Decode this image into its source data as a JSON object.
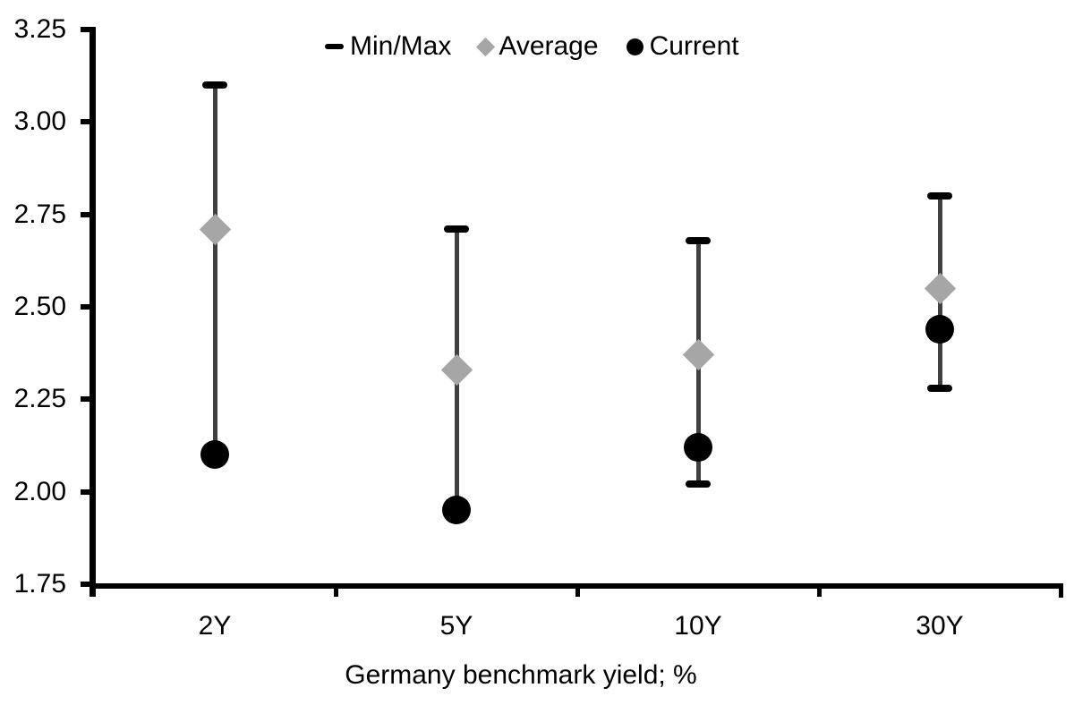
{
  "chart_data": {
    "type": "scatter",
    "subtype": "min-max-range-with-markers",
    "title": "",
    "xlabel": "Germany benchmark yield; %",
    "ylabel": "",
    "categories": [
      "2Y",
      "5Y",
      "10Y",
      "30Y"
    ],
    "y_ticks": [
      "3.25",
      "3.00",
      "2.75",
      "2.50",
      "2.25",
      "2.00",
      "1.75"
    ],
    "ylim": [
      1.75,
      3.25
    ],
    "grid": false,
    "legend_position": "top-center",
    "axis_color": "#000000",
    "error_bar_line_color": "#404040",
    "series": [
      {
        "name": "Min/Max",
        "marker": "dash",
        "color": "#000000",
        "max": [
          3.1,
          2.71,
          2.68,
          2.8
        ],
        "min": [
          2.1,
          1.95,
          2.02,
          2.28
        ]
      },
      {
        "name": "Average",
        "marker": "diamond",
        "color": "#a6a6a6",
        "values": [
          2.71,
          2.33,
          2.37,
          2.55
        ]
      },
      {
        "name": "Current",
        "marker": "circle",
        "color": "#000000",
        "values": [
          2.1,
          1.95,
          2.12,
          2.44
        ]
      }
    ]
  }
}
